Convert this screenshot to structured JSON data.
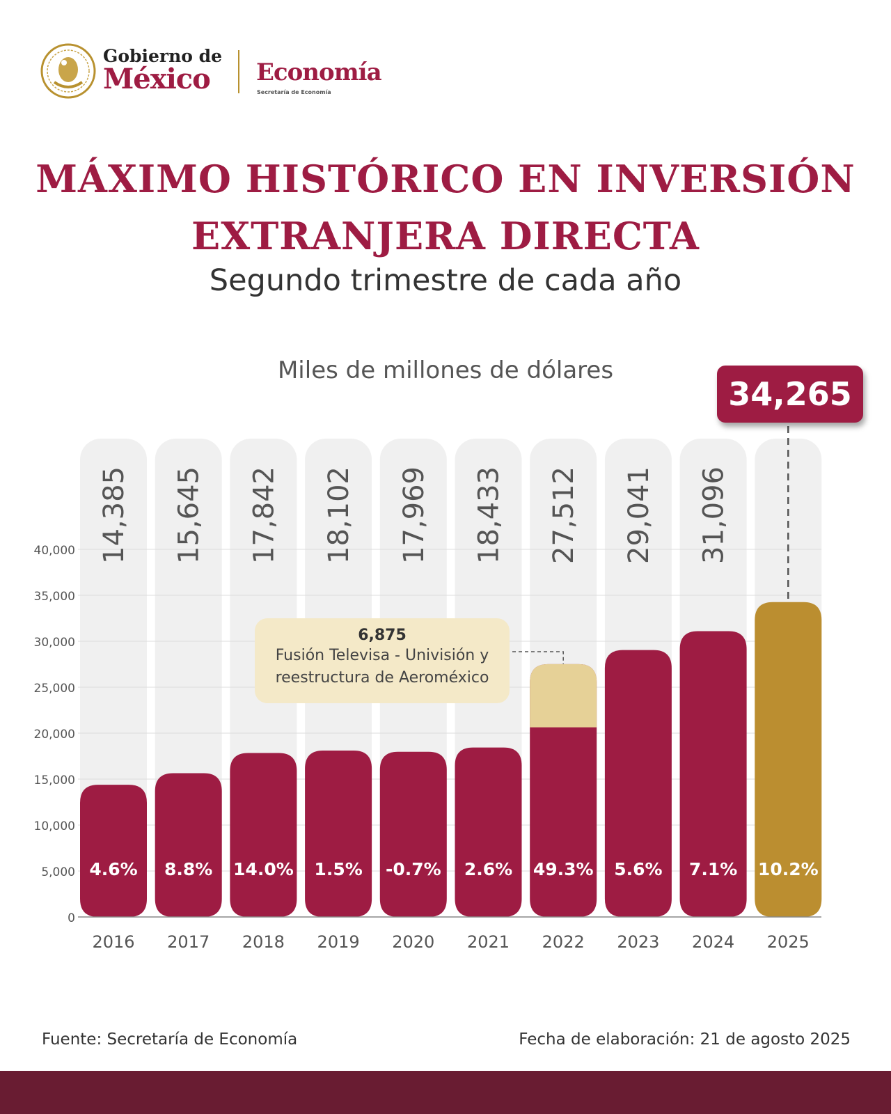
{
  "header": {
    "gobierno_line1": "Gobierno de",
    "gobierno_line2": "México",
    "ministry": "Economía",
    "ministry_sub": "Secretaría de Economía"
  },
  "title_line1": "MÁXIMO HISTÓRICO EN INVERSIÓN",
  "title_line2": "EXTRANJERA DIRECTA",
  "subtitle": "Segundo trimestre de cada año",
  "units": "Miles de millones de dólares",
  "highlight_value": "34,265",
  "annotation": {
    "value": "6,875",
    "line1": "Fusión Televisa - Univisión y",
    "line2": "reestructura de Aeroméxico"
  },
  "footer": {
    "source": "Fuente: Secretaría de Economía",
    "date": "Fecha de elaboración: 21 de agosto 2025"
  },
  "colors": {
    "primary": "#9e1c43",
    "highlight": "#bb8e30",
    "extraordinary": "#e6d197",
    "column_bg": "#f0f0f0",
    "footer_bar": "#691c32"
  },
  "chart_data": {
    "type": "bar",
    "categories": [
      "2016",
      "2017",
      "2018",
      "2019",
      "2020",
      "2021",
      "2022",
      "2023",
      "2024",
      "2025"
    ],
    "values": [
      14385,
      15645,
      17842,
      18102,
      17969,
      18433,
      27512,
      29041,
      31096,
      34265
    ],
    "value_labels": [
      "14,385",
      "15,645",
      "17,842",
      "18,102",
      "17,969",
      "18,433",
      "27,512",
      "29,041",
      "31,096",
      ""
    ],
    "growth_labels": [
      "4.6%",
      "8.8%",
      "14.0%",
      "1.5%",
      "-0.7%",
      "2.6%",
      "49.3%",
      "5.6%",
      "7.1%",
      "10.2%"
    ],
    "extraordinary_component": {
      "category": "2022",
      "value": 6875
    },
    "highlight_category": "2025",
    "yticks": [
      0,
      5000,
      10000,
      15000,
      20000,
      25000,
      30000,
      35000,
      40000
    ],
    "ytick_labels": [
      "0",
      "5,000",
      "10,000",
      "15,000",
      "20,000",
      "25,000",
      "30,000",
      "35,000",
      "40,000"
    ],
    "ylim": [
      0,
      40000
    ],
    "grid": true
  }
}
